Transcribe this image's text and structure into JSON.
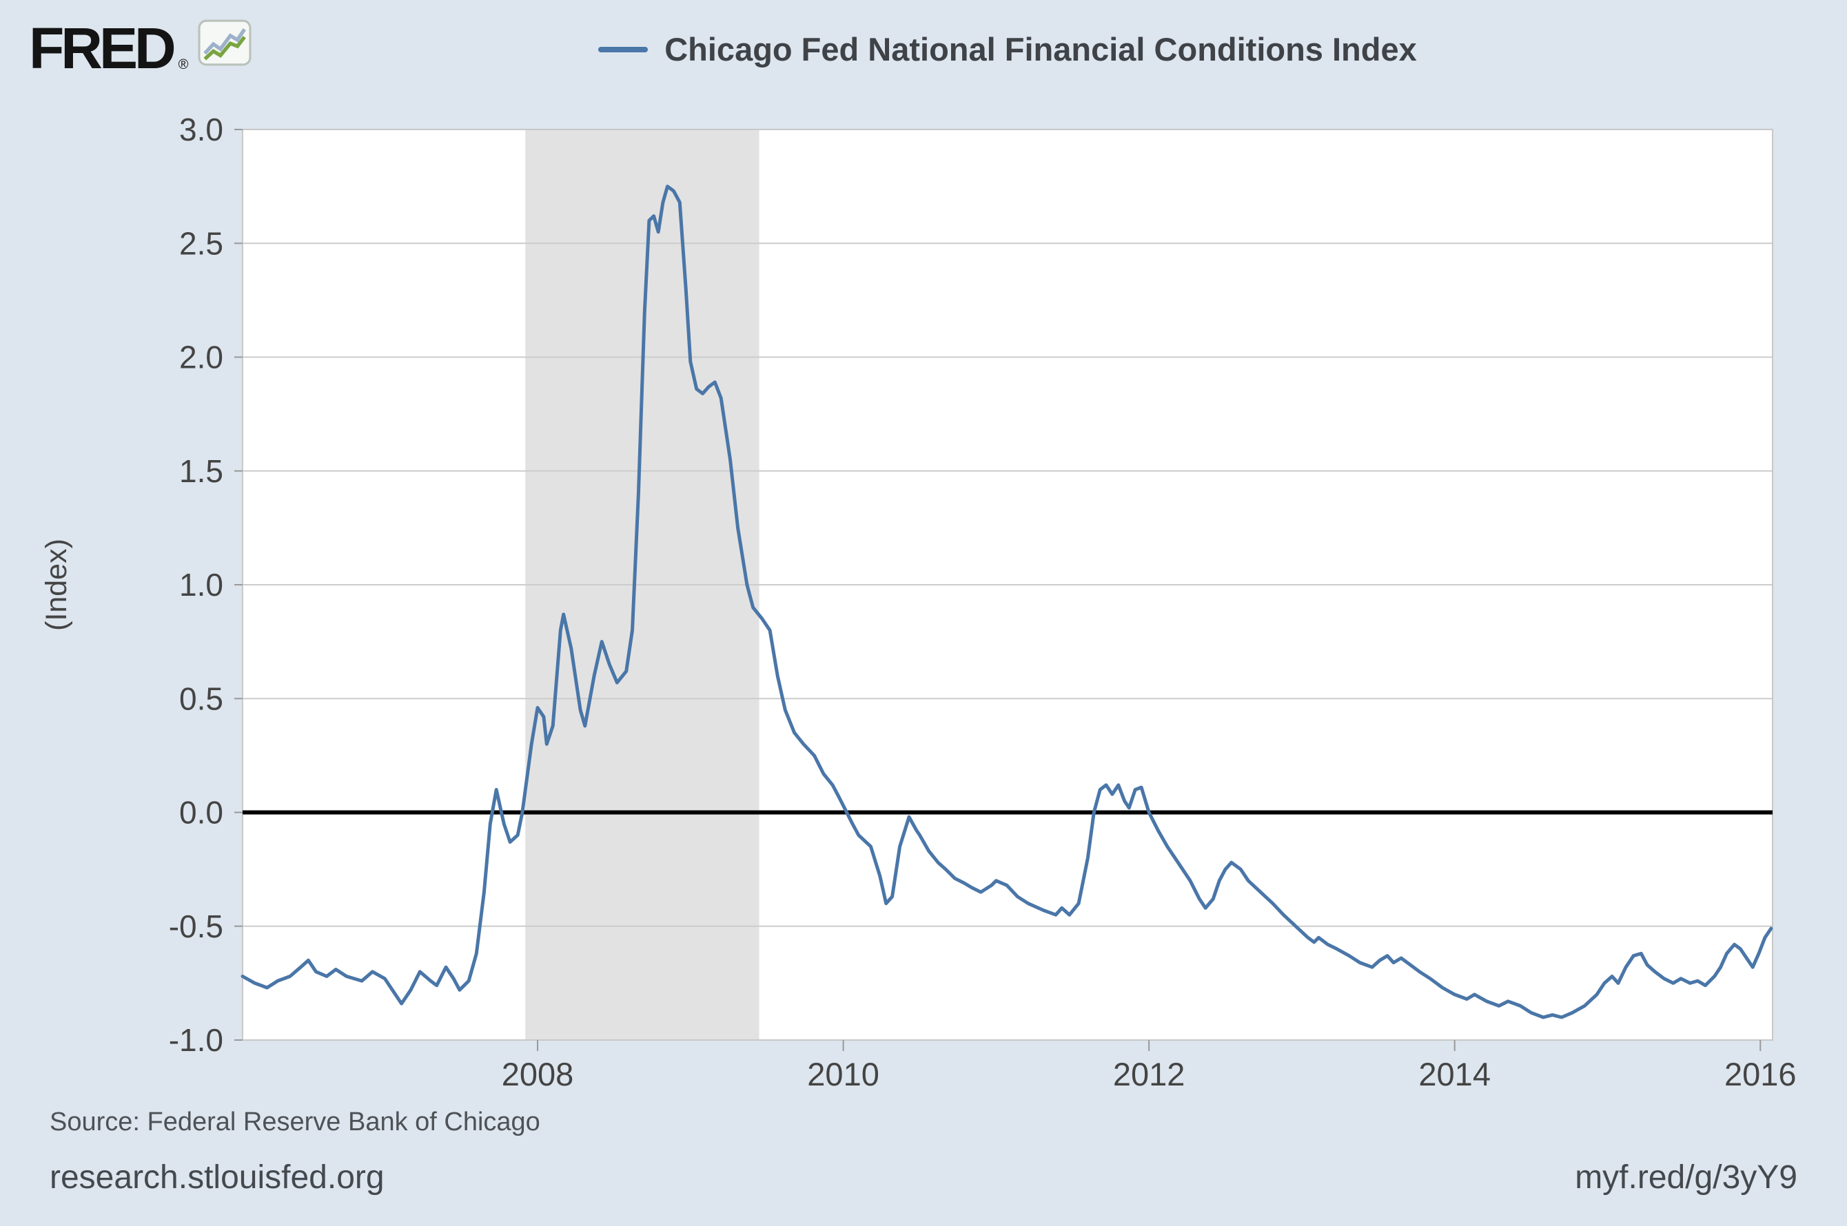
{
  "header": {
    "brand": "FRED",
    "registered_mark": "®",
    "legend_label": "Chicago Fed National Financial Conditions Index"
  },
  "footer": {
    "source": "Source: Federal Reserve Bank of Chicago",
    "site": "research.stlouisfed.org",
    "short_url": "myf.red/g/3yY9"
  },
  "colors": {
    "background": "#dde5ee",
    "line": "#4a76a8",
    "zero_line": "#000000",
    "recession_band": "#e2e2e2",
    "gridline": "#cccccc",
    "plot_background": "#ffffff",
    "text": "#444444"
  },
  "chart_data": {
    "type": "line",
    "title": "Chicago Fed National Financial Conditions Index",
    "xlabel": "",
    "ylabel": "(Index)",
    "ylim": [
      -1.0,
      3.0
    ],
    "xlim": [
      2006.07,
      2016.08
    ],
    "y_ticks": [
      3.0,
      2.5,
      2.0,
      1.5,
      1.0,
      0.5,
      0.0,
      -0.5,
      -1.0
    ],
    "x_ticks": [
      2008,
      2010,
      2012,
      2014,
      2016
    ],
    "grid": true,
    "legend_position": "top-center",
    "zero_line": true,
    "recession_bands": [
      {
        "start": 2007.92,
        "end": 2009.45
      }
    ],
    "series": [
      {
        "name": "Chicago Fed National Financial Conditions Index",
        "x": [
          2006.07,
          2006.15,
          2006.23,
          2006.3,
          2006.38,
          2006.45,
          2006.5,
          2006.55,
          2006.62,
          2006.68,
          2006.75,
          2006.85,
          2006.92,
          2007.0,
          2007.05,
          2007.11,
          2007.17,
          2007.23,
          2007.3,
          2007.34,
          2007.4,
          2007.45,
          2007.49,
          2007.55,
          2007.6,
          2007.65,
          2007.69,
          2007.73,
          2007.78,
          2007.82,
          2007.87,
          2007.9,
          2007.96,
          2008.0,
          2008.04,
          2008.06,
          2008.1,
          2008.15,
          2008.17,
          2008.22,
          2008.28,
          2008.31,
          2008.37,
          2008.42,
          2008.47,
          2008.52,
          2008.58,
          2008.62,
          2008.66,
          2008.7,
          2008.73,
          2008.76,
          2008.79,
          2008.82,
          2008.85,
          2008.89,
          2008.93,
          2008.97,
          2009.0,
          2009.04,
          2009.08,
          2009.12,
          2009.16,
          2009.2,
          2009.26,
          2009.31,
          2009.37,
          2009.41,
          2009.47,
          2009.52,
          2009.57,
          2009.62,
          2009.68,
          2009.74,
          2009.81,
          2009.87,
          2009.93,
          2009.97,
          2010.0,
          2010.06,
          2010.1,
          2010.18,
          2010.24,
          2010.28,
          2010.32,
          2010.37,
          2010.43,
          2010.48,
          2010.5,
          2010.56,
          2010.62,
          2010.67,
          2010.73,
          2010.79,
          2010.84,
          2010.9,
          2010.97,
          2011.0,
          2011.07,
          2011.14,
          2011.21,
          2011.31,
          2011.39,
          2011.43,
          2011.48,
          2011.54,
          2011.6,
          2011.64,
          2011.68,
          2011.72,
          2011.76,
          2011.8,
          2011.84,
          2011.87,
          2011.91,
          2011.95,
          2012.0,
          2012.06,
          2012.12,
          2012.19,
          2012.27,
          2012.33,
          2012.37,
          2012.42,
          2012.46,
          2012.5,
          2012.54,
          2012.6,
          2012.65,
          2012.73,
          2012.81,
          2012.88,
          2012.96,
          2013.04,
          2013.08,
          2013.11,
          2013.17,
          2013.23,
          2013.31,
          2013.38,
          2013.46,
          2013.51,
          2013.56,
          2013.6,
          2013.65,
          2013.71,
          2013.77,
          2013.84,
          2013.92,
          2014.0,
          2014.08,
          2014.13,
          2014.21,
          2014.29,
          2014.35,
          2014.43,
          2014.5,
          2014.58,
          2014.64,
          2014.7,
          2014.77,
          2014.85,
          2014.93,
          2014.98,
          2015.03,
          2015.07,
          2015.12,
          2015.17,
          2015.22,
          2015.26,
          2015.31,
          2015.37,
          2015.43,
          2015.48,
          2015.54,
          2015.59,
          2015.64,
          2015.7,
          2015.74,
          2015.78,
          2015.83,
          2015.87,
          2015.92,
          2015.95,
          2015.99,
          2016.03,
          2016.07
        ],
        "y": [
          -0.72,
          -0.75,
          -0.77,
          -0.74,
          -0.72,
          -0.68,
          -0.65,
          -0.7,
          -0.72,
          -0.69,
          -0.72,
          -0.74,
          -0.7,
          -0.73,
          -0.78,
          -0.84,
          -0.78,
          -0.7,
          -0.74,
          -0.76,
          -0.68,
          -0.73,
          -0.78,
          -0.74,
          -0.62,
          -0.35,
          -0.05,
          0.1,
          -0.05,
          -0.13,
          -0.1,
          0.0,
          0.3,
          0.46,
          0.42,
          0.3,
          0.38,
          0.8,
          0.87,
          0.72,
          0.45,
          0.38,
          0.6,
          0.75,
          0.65,
          0.57,
          0.62,
          0.8,
          1.4,
          2.2,
          2.6,
          2.62,
          2.55,
          2.68,
          2.75,
          2.73,
          2.68,
          2.3,
          1.98,
          1.86,
          1.84,
          1.87,
          1.89,
          1.82,
          1.55,
          1.25,
          1.0,
          0.9,
          0.85,
          0.8,
          0.6,
          0.45,
          0.35,
          0.3,
          0.25,
          0.17,
          0.12,
          0.07,
          0.03,
          -0.05,
          -0.1,
          -0.15,
          -0.28,
          -0.4,
          -0.37,
          -0.15,
          -0.02,
          -0.08,
          -0.1,
          -0.17,
          -0.22,
          -0.25,
          -0.29,
          -0.31,
          -0.33,
          -0.35,
          -0.32,
          -0.3,
          -0.32,
          -0.37,
          -0.4,
          -0.43,
          -0.45,
          -0.42,
          -0.45,
          -0.4,
          -0.2,
          0.0,
          0.1,
          0.12,
          0.08,
          0.12,
          0.05,
          0.02,
          0.1,
          0.11,
          0.0,
          -0.08,
          -0.15,
          -0.22,
          -0.3,
          -0.38,
          -0.42,
          -0.38,
          -0.3,
          -0.25,
          -0.22,
          -0.25,
          -0.3,
          -0.35,
          -0.4,
          -0.45,
          -0.5,
          -0.55,
          -0.57,
          -0.55,
          -0.58,
          -0.6,
          -0.63,
          -0.66,
          -0.68,
          -0.65,
          -0.63,
          -0.66,
          -0.64,
          -0.67,
          -0.7,
          -0.73,
          -0.77,
          -0.8,
          -0.82,
          -0.8,
          -0.83,
          -0.85,
          -0.83,
          -0.85,
          -0.88,
          -0.9,
          -0.89,
          -0.9,
          -0.88,
          -0.85,
          -0.8,
          -0.75,
          -0.72,
          -0.75,
          -0.68,
          -0.63,
          -0.62,
          -0.67,
          -0.7,
          -0.73,
          -0.75,
          -0.73,
          -0.75,
          -0.74,
          -0.76,
          -0.72,
          -0.68,
          -0.62,
          -0.58,
          -0.6,
          -0.65,
          -0.68,
          -0.62,
          -0.55,
          -0.51
        ]
      }
    ]
  }
}
